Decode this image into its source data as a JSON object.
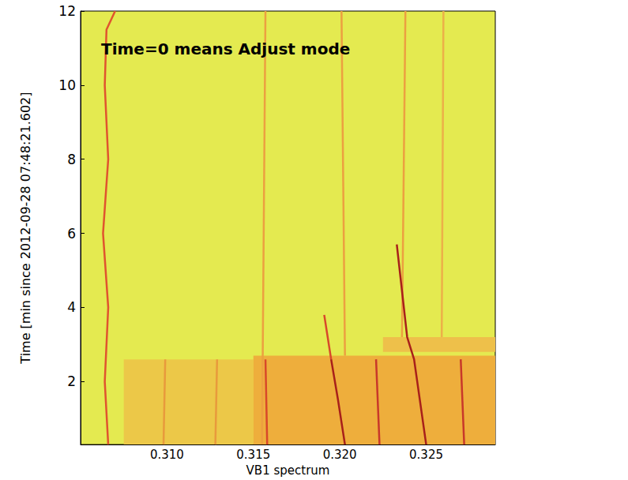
{
  "chart_data": {
    "type": "line",
    "annotation": "Time=0 means Adjust mode",
    "x_label": "VB1 spectrum",
    "y_label": "Time [min since 2012-09-28 07:48:21.602]",
    "xlim": [
      0.305,
      0.329
    ],
    "xticks": [
      {
        "value": 0.31,
        "label": "0.310"
      },
      {
        "value": 0.315,
        "label": "0.315"
      },
      {
        "value": 0.32,
        "label": "0.320"
      },
      {
        "value": 0.325,
        "label": "0.325"
      }
    ],
    "ylim": [
      0.3,
      12
    ],
    "yticks": [
      2,
      4,
      6,
      8,
      10,
      12
    ],
    "grid": false,
    "background": "#e4ea50",
    "regions": [
      {
        "x": [
          0.3075,
          0.315
        ],
        "y": [
          0.3,
          2.6
        ],
        "color": "#ecc848"
      },
      {
        "x": [
          0.315,
          0.329
        ],
        "y": [
          0.3,
          2.7
        ],
        "color": "#eeae3c"
      },
      {
        "x": [
          0.3225,
          0.329
        ],
        "y": [
          2.8,
          3.2
        ],
        "color": "#eec04a"
      }
    ],
    "series": [
      {
        "type": "line",
        "color": "#e0542e",
        "values": [
          [
            0.3066,
            0.3
          ],
          [
            0.3064,
            2
          ],
          [
            0.3066,
            4
          ],
          [
            0.3063,
            6
          ],
          [
            0.3066,
            8
          ],
          [
            0.3064,
            10
          ],
          [
            0.3065,
            11.5
          ],
          [
            0.307,
            12
          ]
        ]
      },
      {
        "type": "line",
        "color": "#eca040",
        "values": [
          [
            0.3155,
            0.3
          ],
          [
            0.3157,
            12
          ]
        ]
      },
      {
        "type": "line",
        "color": "#eca040",
        "values": [
          [
            0.3203,
            2.7
          ],
          [
            0.3201,
            12
          ]
        ]
      },
      {
        "type": "line",
        "color": "#eca040",
        "values": [
          [
            0.3236,
            3.2
          ],
          [
            0.3238,
            12
          ]
        ]
      },
      {
        "type": "line",
        "color": "#ecb048",
        "values": [
          [
            0.3259,
            3.2
          ],
          [
            0.326,
            12
          ]
        ]
      },
      {
        "type": "line",
        "color": "#e89a3c",
        "values": [
          [
            0.3098,
            0.3
          ],
          [
            0.3099,
            2.6
          ]
        ]
      },
      {
        "type": "line",
        "color": "#e89a3c",
        "values": [
          [
            0.3128,
            0.3
          ],
          [
            0.3129,
            2.6
          ]
        ]
      },
      {
        "type": "line",
        "color": "#d8482a",
        "values": [
          [
            0.3158,
            0.3
          ],
          [
            0.3157,
            2.6
          ]
        ]
      },
      {
        "type": "line",
        "color": "#a8201a",
        "values": [
          [
            0.3203,
            0.3
          ],
          [
            0.3199,
            1.5
          ],
          [
            0.3195,
            2.6
          ]
        ]
      },
      {
        "type": "line",
        "color": "#d8482a",
        "values": [
          [
            0.3195,
            2.6
          ],
          [
            0.3191,
            3.8
          ]
        ]
      },
      {
        "type": "line",
        "color": "#c8382a",
        "values": [
          [
            0.3223,
            0.3
          ],
          [
            0.3221,
            2.6
          ]
        ]
      },
      {
        "type": "line",
        "color": "#a8201a",
        "values": [
          [
            0.325,
            0.3
          ],
          [
            0.3243,
            2.6
          ],
          [
            0.3239,
            3.2
          ],
          [
            0.3233,
            5.7
          ]
        ]
      },
      {
        "type": "line",
        "color": "#c8382a",
        "values": [
          [
            0.3272,
            0.3
          ],
          [
            0.327,
            2.6
          ]
        ]
      }
    ]
  }
}
